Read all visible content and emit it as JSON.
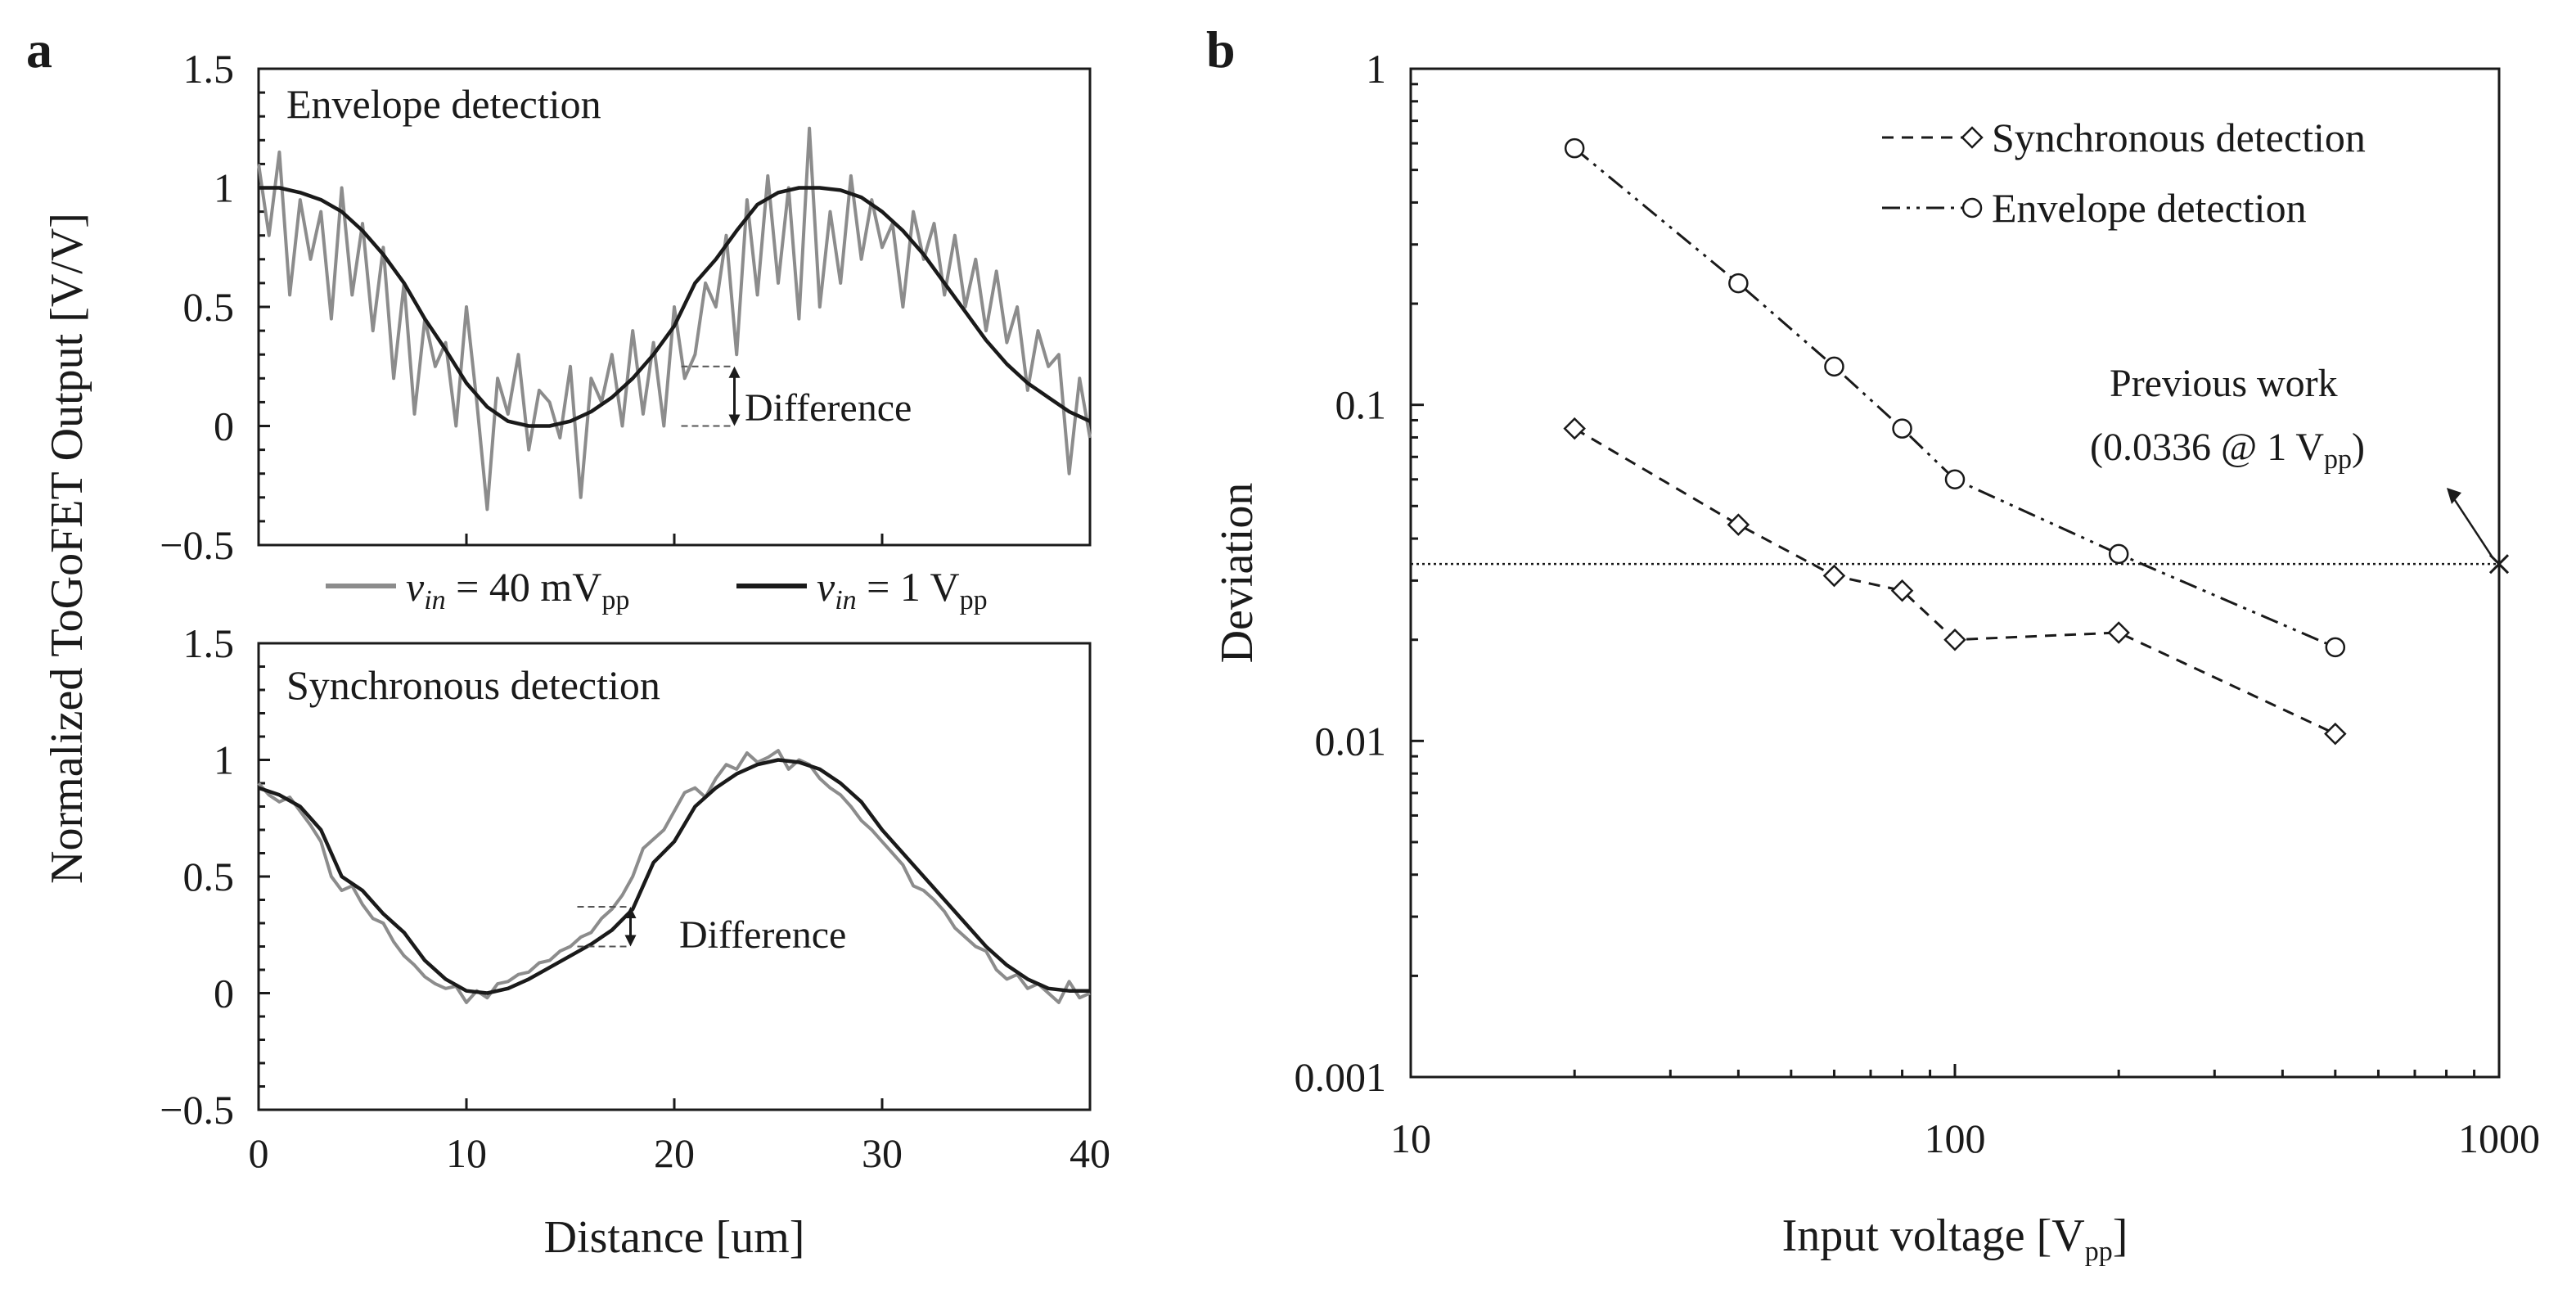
{
  "colors": {
    "axis": "#1a1a1a",
    "series_40mv": "#8c8c8c",
    "series_1v": "#1a1a1a",
    "background": "#ffffff"
  },
  "chart_data": [
    {
      "panel": "a",
      "type": "line",
      "title": "Envelope detection",
      "xlabel": "Distance [um]",
      "ylabel": "Normalized ToGoFET Output [V/V]",
      "xlim": [
        0,
        40
      ],
      "ylim": [
        -0.5,
        1.5
      ],
      "x_ticks": [
        "0",
        "10",
        "20",
        "30",
        "40"
      ],
      "y_ticks": [
        "−0.5",
        "0",
        "0.5",
        "1",
        "1.5"
      ],
      "annotation": "Difference",
      "difference_marker": {
        "x": 22.5,
        "y_low": 0,
        "y_high": 0.25
      },
      "series": [
        {
          "name": "v_in = 40 mV_pp",
          "color": "#8c8c8c",
          "x": [
            0,
            0.5,
            1,
            1.5,
            2,
            2.5,
            3,
            3.5,
            4,
            4.5,
            5,
            5.5,
            6,
            6.5,
            7,
            7.5,
            8,
            8.5,
            9,
            9.5,
            10,
            10.5,
            11,
            11.5,
            12,
            12.5,
            13,
            13.5,
            14,
            14.5,
            15,
            15.5,
            16,
            16.5,
            17,
            17.5,
            18,
            18.5,
            19,
            19.5,
            20,
            20.5,
            21,
            21.5,
            22,
            22.5,
            23,
            23.5,
            24,
            24.5,
            25,
            25.5,
            26,
            26.5,
            27,
            27.5,
            28,
            28.5,
            29,
            29.5,
            30,
            30.5,
            31,
            31.5,
            32,
            32.5,
            33,
            33.5,
            34,
            34.5,
            35,
            35.5,
            36,
            36.5,
            37,
            37.5,
            38,
            38.5,
            39,
            39.5,
            40
          ],
          "values": [
            1.1,
            0.8,
            1.15,
            0.55,
            0.95,
            0.7,
            0.9,
            0.45,
            1.0,
            0.55,
            0.85,
            0.4,
            0.75,
            0.2,
            0.6,
            0.05,
            0.45,
            0.25,
            0.35,
            0.0,
            0.5,
            0.1,
            -0.35,
            0.2,
            0.05,
            0.3,
            -0.1,
            0.15,
            0.1,
            -0.05,
            0.25,
            -0.3,
            0.2,
            0.1,
            0.3,
            0.0,
            0.4,
            0.05,
            0.35,
            0.0,
            0.5,
            0.2,
            0.3,
            0.6,
            0.5,
            0.8,
            0.3,
            0.95,
            0.55,
            1.05,
            0.6,
            1.0,
            0.45,
            1.25,
            0.5,
            0.9,
            0.6,
            1.05,
            0.7,
            0.95,
            0.75,
            0.85,
            0.5,
            0.9,
            0.7,
            0.85,
            0.55,
            0.8,
            0.5,
            0.7,
            0.4,
            0.65,
            0.35,
            0.5,
            0.15,
            0.4,
            0.25,
            0.3,
            -0.2,
            0.2,
            -0.05
          ]
        },
        {
          "name": "v_in = 1 V_pp",
          "color": "#1a1a1a",
          "x": [
            0,
            1,
            2,
            3,
            4,
            5,
            6,
            7,
            8,
            9,
            10,
            11,
            12,
            13,
            14,
            15,
            16,
            17,
            18,
            19,
            20,
            21,
            22,
            23,
            24,
            25,
            26,
            27,
            28,
            29,
            30,
            31,
            32,
            33,
            34,
            35,
            36,
            37,
            38,
            39,
            40
          ],
          "values": [
            1.0,
            1.0,
            0.98,
            0.95,
            0.9,
            0.82,
            0.72,
            0.6,
            0.45,
            0.32,
            0.18,
            0.08,
            0.02,
            0.0,
            0.0,
            0.02,
            0.06,
            0.12,
            0.2,
            0.3,
            0.42,
            0.6,
            0.7,
            0.82,
            0.93,
            0.98,
            1.0,
            1.0,
            0.99,
            0.96,
            0.9,
            0.82,
            0.72,
            0.6,
            0.48,
            0.36,
            0.26,
            0.18,
            0.12,
            0.06,
            0.02
          ]
        }
      ]
    },
    {
      "panel": "a",
      "type": "line",
      "title": "Synchronous detection",
      "xlabel": "Distance [um]",
      "ylabel": "Normalized ToGoFET Output [V/V]",
      "xlim": [
        0,
        40
      ],
      "ylim": [
        -0.5,
        1.5
      ],
      "x_ticks": [
        "0",
        "10",
        "20",
        "30",
        "40"
      ],
      "y_ticks": [
        "−0.5",
        "0",
        "0.5",
        "1",
        "1.5"
      ],
      "annotation": "Difference",
      "difference_marker": {
        "x": 17.5,
        "y_low": 0.2,
        "y_high": 0.37
      },
      "series": [
        {
          "name": "v_in = 40 mV_pp",
          "color": "#8c8c8c",
          "x": [
            0,
            0.5,
            1,
            1.5,
            2,
            2.5,
            3,
            3.5,
            4,
            4.5,
            5,
            5.5,
            6,
            6.5,
            7,
            7.5,
            8,
            8.5,
            9,
            9.5,
            10,
            10.5,
            11,
            11.5,
            12,
            12.5,
            13,
            13.5,
            14,
            14.5,
            15,
            15.5,
            16,
            16.5,
            17,
            17.5,
            18,
            18.5,
            19,
            19.5,
            20,
            20.5,
            21,
            21.5,
            22,
            22.5,
            23,
            23.5,
            24,
            24.5,
            25,
            25.5,
            26,
            26.5,
            27,
            27.5,
            28,
            28.5,
            29,
            29.5,
            30,
            30.5,
            31,
            31.5,
            32,
            32.5,
            33,
            33.5,
            34,
            34.5,
            35,
            35.5,
            36,
            36.5,
            37,
            37.5,
            38,
            38.5,
            39,
            39.5,
            40
          ],
          "values": [
            0.9,
            0.85,
            0.82,
            0.84,
            0.78,
            0.72,
            0.65,
            0.5,
            0.44,
            0.46,
            0.38,
            0.32,
            0.3,
            0.22,
            0.16,
            0.12,
            0.07,
            0.04,
            0.02,
            0.03,
            -0.04,
            0.01,
            -0.02,
            0.04,
            0.05,
            0.08,
            0.09,
            0.13,
            0.14,
            0.18,
            0.2,
            0.24,
            0.26,
            0.32,
            0.36,
            0.42,
            0.5,
            0.62,
            0.66,
            0.7,
            0.78,
            0.86,
            0.88,
            0.84,
            0.92,
            0.98,
            0.96,
            1.03,
            0.99,
            1.01,
            1.04,
            0.96,
            1.0,
            0.98,
            0.92,
            0.88,
            0.85,
            0.8,
            0.74,
            0.7,
            0.65,
            0.6,
            0.55,
            0.46,
            0.44,
            0.4,
            0.35,
            0.28,
            0.24,
            0.2,
            0.18,
            0.1,
            0.06,
            0.08,
            0.02,
            0.04,
            0.0,
            -0.04,
            0.05,
            -0.02,
            0.0
          ]
        },
        {
          "name": "v_in = 1 V_pp",
          "color": "#1a1a1a",
          "x": [
            0,
            1,
            2,
            3,
            4,
            5,
            6,
            7,
            8,
            9,
            10,
            11,
            12,
            13,
            14,
            15,
            16,
            17,
            18,
            19,
            20,
            21,
            22,
            23,
            24,
            25,
            26,
            27,
            28,
            29,
            30,
            31,
            32,
            33,
            34,
            35,
            36,
            37,
            38,
            39,
            40
          ],
          "values": [
            0.88,
            0.85,
            0.8,
            0.7,
            0.5,
            0.44,
            0.34,
            0.26,
            0.14,
            0.06,
            0.01,
            0.0,
            0.02,
            0.06,
            0.11,
            0.16,
            0.21,
            0.27,
            0.36,
            0.56,
            0.65,
            0.8,
            0.88,
            0.94,
            0.98,
            1.0,
            0.99,
            0.96,
            0.9,
            0.82,
            0.7,
            0.6,
            0.5,
            0.4,
            0.3,
            0.2,
            0.12,
            0.06,
            0.02,
            0.01,
            0.01
          ]
        }
      ]
    },
    {
      "panel": "b",
      "type": "line",
      "scale": "log-log",
      "xlabel": "Input voltage [V",
      "xlabel_sub": "pp",
      "xlabel_end": "]",
      "ylabel": "Deviation",
      "xlim": [
        10,
        1000
      ],
      "ylim": [
        0.001,
        1
      ],
      "x_ticks": [
        "10",
        "100",
        "1000"
      ],
      "y_ticks": [
        "0.001",
        "0.01",
        "0.1",
        "1"
      ],
      "legend_position": "top-right",
      "series": [
        {
          "name": "Synchronous detection",
          "marker": "diamond",
          "linestyle": "dashed",
          "x": [
            20,
            40,
            60,
            80,
            100,
            200,
            500
          ],
          "values": [
            0.085,
            0.044,
            0.031,
            0.028,
            0.02,
            0.021,
            0.0105
          ]
        },
        {
          "name": "Envelope detection",
          "marker": "circle",
          "linestyle": "dash-dot-dot",
          "x": [
            20,
            40,
            60,
            80,
            100,
            200,
            500
          ],
          "values": [
            0.58,
            0.23,
            0.13,
            0.085,
            0.06,
            0.036,
            0.019
          ]
        }
      ],
      "reference_line": {
        "value": 0.0336,
        "marker_x": 1000
      },
      "annotation": {
        "line1": "Previous work",
        "line2_start": "(0.0336 @ 1 V",
        "line2_sub": "pp",
        "line2_end": ")"
      }
    }
  ],
  "legend_a": [
    {
      "var": "v",
      "sub": "in",
      "rest": " = 40 mV",
      "unit_sub": "pp",
      "color": "#8c8c8c"
    },
    {
      "var": "v",
      "sub": "in",
      "rest": " = 1 V",
      "unit_sub": "pp",
      "color": "#1a1a1a"
    }
  ],
  "panel_labels": {
    "a": "a",
    "b": "b"
  }
}
